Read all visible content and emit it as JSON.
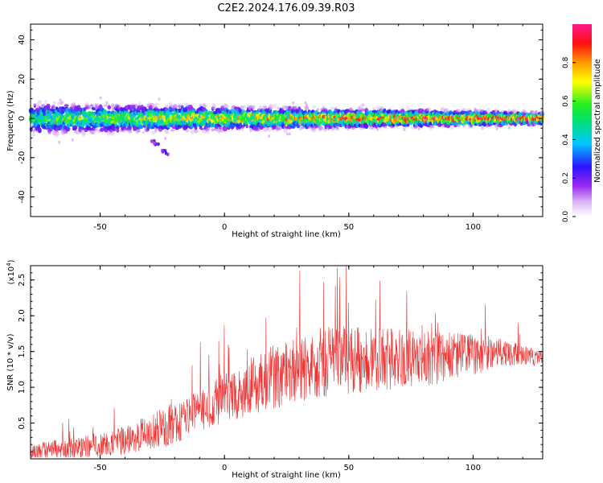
{
  "title": "C2E2.2024.176.09.39.R03",
  "chart_data": [
    {
      "type": "heatmap",
      "xlabel": "Height of straight line (km)",
      "ylabel": "Frequency (Hz)",
      "xlim": [
        -78,
        128
      ],
      "ylim": [
        -50,
        48
      ],
      "xticks": [
        -50,
        0,
        50,
        100
      ],
      "yticks": [
        -40,
        -20,
        0,
        20,
        40
      ],
      "colorbar": {
        "label": "Normalized spectral amplitude",
        "range": [
          0,
          1
        ],
        "ticks": [
          "0.0",
          "0.2",
          "0.4",
          "0.6",
          "0.8"
        ],
        "colormap": "rainbow (white, violet, blue, cyan, green, yellow, orange, red, magenta)"
      },
      "band": {
        "center_hz": 0,
        "half_width_hz_at_-78_km": 8,
        "half_width_hz_at_128_km": 3,
        "peak_amplitude_at_-78_km": 0.6,
        "peak_amplitude_at_128_km": 1.0
      },
      "tail": {
        "x_km": [
          -30,
          -20
        ],
        "y_hz": [
          -10,
          -22
        ]
      }
    },
    {
      "type": "line",
      "xlabel": "Height of straight line (km)",
      "ylabel": "SNR (10 * v/v)",
      "scale_label": "(x10",
      "scale_exponent": "4",
      "xlim": [
        -78,
        128
      ],
      "ylim": [
        0,
        2.7
      ],
      "xticks": [
        -50,
        0,
        50,
        100
      ],
      "yticks": [
        "0.5",
        "1.0",
        "1.5",
        "2.0",
        "2.5"
      ],
      "color": "#ee3333",
      "series": [
        {
          "x": [
            -78,
            -60,
            -40,
            -20,
            0,
            20,
            40,
            60,
            80,
            100,
            110,
            128
          ],
          "mean": [
            0.1,
            0.15,
            0.25,
            0.5,
            0.85,
            1.15,
            1.35,
            1.4,
            1.4,
            1.45,
            1.5,
            1.4
          ],
          "noise": [
            0.12,
            0.15,
            0.2,
            0.3,
            0.35,
            0.45,
            0.5,
            0.45,
            0.4,
            0.3,
            0.2,
            0.1
          ],
          "max": 2.7
        }
      ]
    }
  ]
}
